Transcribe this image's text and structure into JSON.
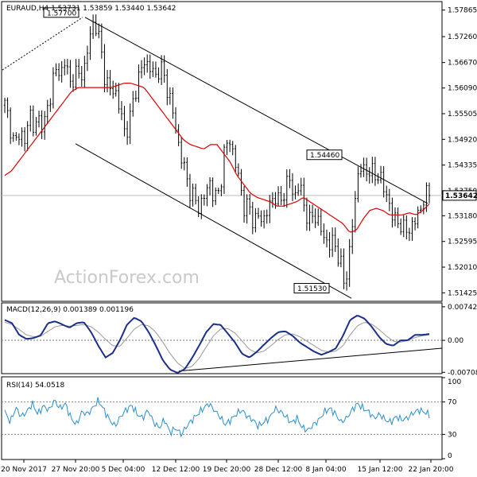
{
  "chart_data": [
    {
      "type": "candlestick",
      "panel": "price",
      "symbol_header": "EURAUD,H4",
      "ohlc_header": [
        "1.53731",
        "1.53859",
        "1.53440",
        "1.53642"
      ],
      "open": 1.53731,
      "high": 1.53859,
      "low": 1.5344,
      "close": 1.53642,
      "ylim": [
        1.5125,
        1.5804
      ],
      "y_ticks": [
        "1.57865",
        "1.57260",
        "1.56670",
        "1.56090",
        "1.55505",
        "1.54920",
        "1.54335",
        "1.53750",
        "1.53180",
        "1.52595",
        "1.52010",
        "1.51425"
      ],
      "current_price_label": "1.53642",
      "x_ticks": [
        "20 Nov 2017",
        "27 Nov 20:00",
        "5 Dec 04:00",
        "12 Dec 12:00",
        "19 Dec 20:00",
        "28 Dec 12:00",
        "8 Jan 04:00",
        "15 Jan 12:00",
        "22 Jan 20:00"
      ],
      "annotations": [
        {
          "label": "1.57700",
          "value": 1.577
        },
        {
          "label": "1.54460",
          "value": 1.5446
        },
        {
          "label": "1.51530",
          "value": 1.5153
        }
      ],
      "watermark": "ActionForex.com",
      "series": [
        {
          "name": "price_path",
          "values": [
            1.557,
            1.553,
            1.547,
            1.552,
            1.548,
            1.556,
            1.551,
            1.554,
            1.553,
            1.558,
            1.566,
            1.563,
            1.568,
            1.561,
            1.565,
            1.563,
            1.566,
            1.572,
            1.577,
            1.571,
            1.564,
            1.56,
            1.561,
            1.556,
            1.551,
            1.553,
            1.56,
            1.564,
            1.567,
            1.566,
            1.563,
            1.566,
            1.563,
            1.559,
            1.553,
            1.547,
            1.542,
            1.538,
            1.535,
            1.534,
            1.536,
            1.54,
            1.535,
            1.538,
            1.546,
            1.55,
            1.544,
            1.54,
            1.533,
            1.534,
            1.53,
            1.532,
            1.531,
            1.534,
            1.537,
            1.534,
            1.538,
            1.54,
            1.536,
            1.539,
            1.534,
            1.53,
            1.533,
            1.529,
            1.527,
            1.525,
            1.526,
            1.522,
            1.516,
            1.523,
            1.534,
            1.544,
            1.541,
            1.543,
            1.54,
            1.542,
            1.537,
            1.535,
            1.53,
            1.531,
            1.528,
            1.529,
            1.53,
            1.533,
            1.536,
            1.5364
          ]
        },
        {
          "name": "moving_average",
          "values": [
            1.541,
            1.542,
            1.544,
            1.546,
            1.548,
            1.55,
            1.552,
            1.554,
            1.556,
            1.558,
            1.56,
            1.561,
            1.561,
            1.561,
            1.561,
            1.561,
            1.561,
            1.5615,
            1.562,
            1.562,
            1.5615,
            1.561,
            1.559,
            1.557,
            1.555,
            1.553,
            1.551,
            1.549,
            1.548,
            1.5475,
            1.547,
            1.548,
            1.548,
            1.546,
            1.544,
            1.541,
            1.539,
            1.537,
            1.536,
            1.5355,
            1.535,
            1.534,
            1.534,
            1.5345,
            1.535,
            1.536,
            1.535,
            1.534,
            1.533,
            1.532,
            1.531,
            1.53,
            1.528,
            1.5285,
            1.531,
            1.533,
            1.5335,
            1.533,
            1.532,
            1.532,
            1.532,
            1.5325,
            1.532,
            1.533,
            1.5345
          ]
        }
      ]
    },
    {
      "type": "line",
      "panel": "macd",
      "header": "MACD(12,26,9) 0.001389 0.001196",
      "ylim": [
        -0.0072,
        0.0081
      ],
      "y_ticks": [
        "0.007424",
        "0.00",
        "-0.007081"
      ],
      "series": [
        {
          "name": "macd",
          "values": [
            0.0045,
            0.0038,
            0.0012,
            0.0003,
            0.0005,
            0.0011,
            0.0038,
            0.0042,
            0.0035,
            0.0028,
            0.0038,
            0.004,
            0.0018,
            -0.0012,
            -0.0038,
            -0.0028,
            0.0,
            0.0035,
            0.005,
            0.0042,
            0.0018,
            -0.0012,
            -0.0045,
            -0.0065,
            -0.0072,
            -0.0064,
            -0.004,
            -0.0012,
            0.0018,
            0.0036,
            0.0034,
            0.0015,
            -0.0005,
            -0.003,
            -0.0038,
            -0.0026,
            -0.001,
            0.0005,
            0.0018,
            0.002,
            0.001,
            -0.0005,
            -0.0015,
            -0.0025,
            -0.0032,
            -0.0026,
            -0.0018,
            0.001,
            0.0045,
            0.0055,
            0.0048,
            0.003,
            0.0008,
            -0.0008,
            -0.0012,
            0.0,
            0.0,
            0.0012,
            0.0012,
            0.0014
          ]
        },
        {
          "name": "signal",
          "values": [
            0.004,
            0.0035,
            0.0024,
            0.0012,
            0.0008,
            0.0009,
            0.002,
            0.003,
            0.0033,
            0.0031,
            0.0033,
            0.0035,
            0.003,
            0.0018,
            0.0002,
            -0.0012,
            -0.0013,
            0.0005,
            0.0025,
            0.0035,
            0.0032,
            0.0018,
            -0.0005,
            -0.003,
            -0.005,
            -0.0062,
            -0.0058,
            -0.004,
            -0.0015,
            0.001,
            0.0025,
            0.0026,
            0.0016,
            -0.0002,
            -0.002,
            -0.0028,
            -0.0024,
            -0.0012,
            0.0002,
            0.0012,
            0.0014,
            0.0008,
            -0.0002,
            -0.0012,
            -0.0022,
            -0.0026,
            -0.0024,
            -0.0012,
            0.0012,
            0.0032,
            0.004,
            0.0036,
            0.0024,
            0.001,
            -0.0002,
            -0.0004,
            0.0,
            0.0006,
            0.001,
            0.0012
          ]
        }
      ]
    },
    {
      "type": "line",
      "panel": "rsi",
      "header": "RSI(14) 54.0518",
      "ylim": [
        0,
        100
      ],
      "y_ticks": [
        "100",
        "70",
        "30",
        "0"
      ],
      "series": [
        {
          "name": "rsi",
          "values": [
            58,
            45,
            63,
            52,
            58,
            68,
            55,
            65,
            60,
            72,
            62,
            68,
            50,
            42,
            58,
            55,
            63,
            72,
            60,
            48,
            40,
            52,
            60,
            66,
            55,
            50,
            60,
            45,
            38,
            48,
            32,
            38,
            30,
            40,
            48,
            55,
            62,
            68,
            60,
            52,
            42,
            48,
            55,
            60,
            52,
            48,
            40,
            45,
            50,
            62,
            58,
            52,
            44,
            50,
            38,
            35,
            42,
            48,
            58,
            62,
            55,
            45,
            50,
            60,
            68,
            62,
            58,
            50,
            55,
            48,
            45,
            52,
            48,
            50,
            56,
            60,
            58,
            54
          ]
        }
      ]
    }
  ]
}
